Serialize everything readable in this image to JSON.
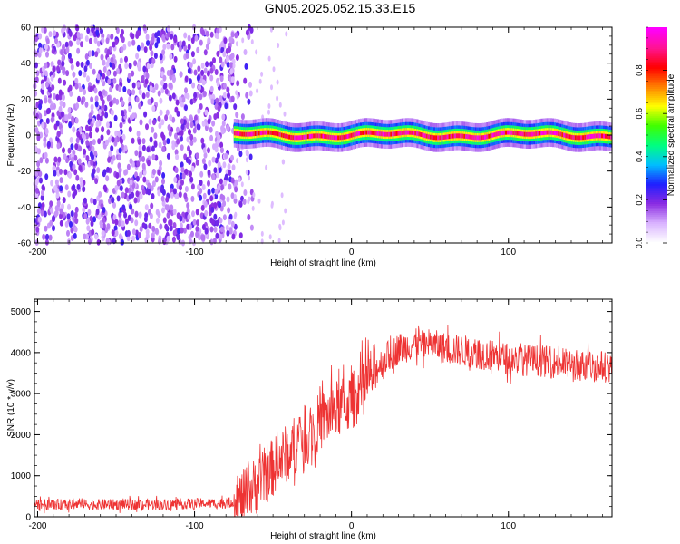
{
  "title": "GN05.2025.052.15.33.E15",
  "chart_data": [
    {
      "type": "heatmap",
      "xlabel": "Height of straight line (km)",
      "ylabel": "Frequency (Hz)",
      "xlim": [
        -202,
        166
      ],
      "ylim": [
        -60,
        60
      ],
      "x_ticks": [
        -200,
        -100,
        0,
        100
      ],
      "y_ticks": [
        60,
        40,
        20,
        0,
        -20,
        -40,
        -60
      ],
      "colorbar": {
        "label": "Normalized spectral amplitude",
        "range": [
          0,
          1
        ],
        "ticks": [
          "0.0",
          "0.2",
          "0.4",
          "0.6",
          "0.8"
        ],
        "colors": [
          "#ffffff",
          "#d9b3ff",
          "#8a2be2",
          "#1f1fff",
          "#00bfff",
          "#00ff80",
          "#40ff00",
          "#ffff00",
          "#ff8000",
          "#ff0000",
          "#ff1493",
          "#ff00ff"
        ]
      },
      "noise_region": {
        "x_range": [
          -202,
          -75
        ],
        "level": 0.2
      },
      "signal_band": {
        "x_range": [
          -75,
          166
        ],
        "center_freq": 0,
        "half_width_hz": 5,
        "peak_amplitude": 1.0
      }
    },
    {
      "type": "line",
      "xlabel": "Height of straight line (km)",
      "ylabel": "SNR (10 * v/v)",
      "xlim": [
        -202,
        166
      ],
      "ylim": [
        0,
        5300
      ],
      "x_ticks": [
        -200,
        -100,
        0,
        100
      ],
      "y_ticks": [
        0,
        1000,
        2000,
        3000,
        4000,
        5000
      ],
      "series": [
        {
          "color": "#ee3333",
          "x": [
            -202,
            -180,
            -160,
            -140,
            -120,
            -100,
            -80,
            -70,
            -60,
            -50,
            -40,
            -30,
            -20,
            -10,
            0,
            10,
            20,
            30,
            40,
            50,
            60,
            80,
            100,
            120,
            140,
            166
          ],
          "y": [
            300,
            300,
            300,
            300,
            300,
            320,
            330,
            400,
            800,
            1200,
            1600,
            2000,
            2300,
            2600,
            2800,
            3300,
            3800,
            4100,
            4200,
            4200,
            4100,
            4000,
            3850,
            3800,
            3700,
            3650
          ]
        }
      ]
    }
  ]
}
